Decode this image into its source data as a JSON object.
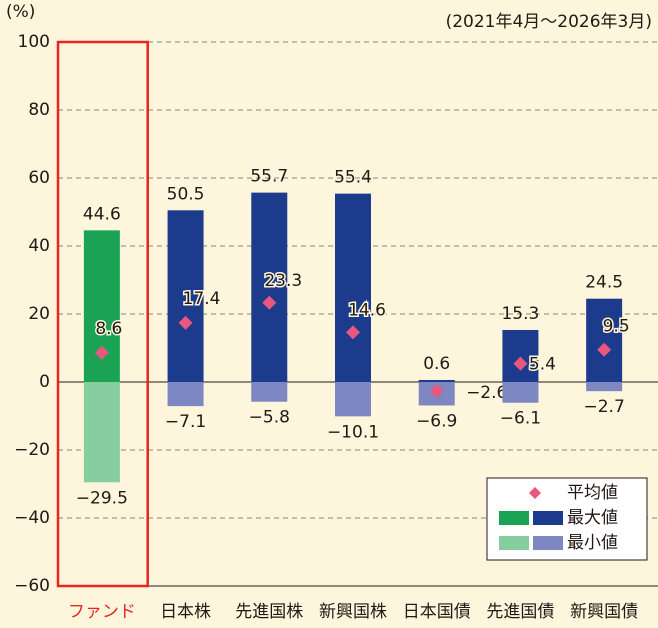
{
  "chart_data": {
    "type": "range-bar",
    "unit_label": "(%)",
    "subtitle": "(2021年4月～2026年3月)",
    "categories": [
      "ファンド",
      "日本株",
      "先進国株",
      "新興国株",
      "日本国債",
      "先進国債",
      "新興国債"
    ],
    "category_colors": [
      "#e8241c",
      "#231815",
      "#231815",
      "#231815",
      "#231815",
      "#231815",
      "#231815"
    ],
    "series": [
      {
        "name": "最大値",
        "colors": [
          "#1ba355",
          "#1c3b8c",
          "#1c3b8c",
          "#1c3b8c",
          "#1c3b8c",
          "#1c3b8c",
          "#1c3b8c"
        ],
        "values": [
          44.6,
          50.5,
          55.7,
          55.4,
          0.6,
          15.3,
          24.5
        ]
      },
      {
        "name": "最小値",
        "colors": [
          "#86cea0",
          "#7d87c1",
          "#7d87c1",
          "#7d87c1",
          "#7d87c1",
          "#7d87c1",
          "#7d87c1"
        ],
        "values": [
          -29.5,
          -7.1,
          -5.8,
          -10.1,
          -6.9,
          -6.1,
          -2.7
        ],
        "value_labels": [
          "−29.5",
          "−7.1",
          "−5.8",
          "−10.1",
          "−6.9",
          "−6.1",
          "−2.7"
        ]
      },
      {
        "name": "平均値",
        "color": "#e9577f",
        "values": [
          8.6,
          17.4,
          23.3,
          14.6,
          -2.6,
          5.4,
          9.5
        ],
        "value_labels": [
          "8.6",
          "17.4",
          "23.3",
          "14.6",
          "−2.6",
          "5.4",
          "9.5"
        ]
      }
    ],
    "ylim": [
      -60,
      100
    ],
    "yticks": [
      {
        "value": -60,
        "label": "−60"
      },
      {
        "value": -40,
        "label": "−40"
      },
      {
        "value": -20,
        "label": "−20"
      },
      0,
      20,
      40,
      60,
      80,
      100
    ],
    "grid": true,
    "legend": "lower right"
  }
}
